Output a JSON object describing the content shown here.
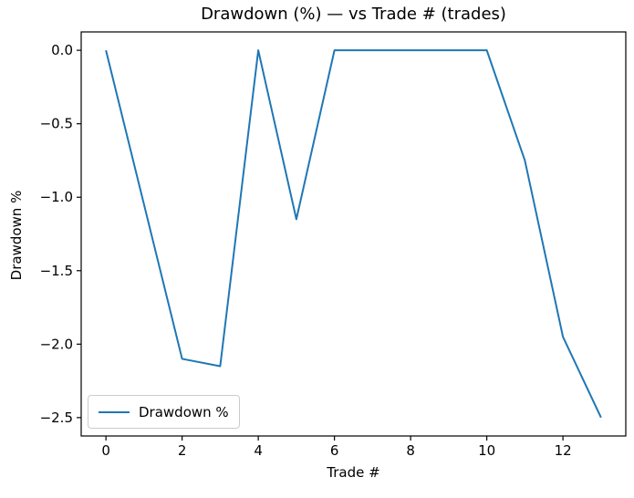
{
  "figure": {
    "background": "#ffffff"
  },
  "chart_data": {
    "type": "line",
    "title": "Drawdown (%) — vs Trade # (trades)",
    "xlabel": "Trade #",
    "ylabel": "Drawdown %",
    "x": [
      0,
      1,
      2,
      3,
      4,
      5,
      6,
      7,
      8,
      9,
      10,
      11,
      12,
      13
    ],
    "series": [
      {
        "name": "Drawdown %",
        "color": "#1f77b4",
        "values": [
          0.0,
          -1.05,
          -2.1,
          -2.15,
          0.0,
          -1.15,
          0.0,
          0.0,
          0.0,
          0.0,
          0.0,
          -0.75,
          -1.95,
          -2.5
        ]
      }
    ],
    "xlim": [
      -0.65,
      13.65
    ],
    "ylim": [
      -2.625,
      0.125
    ],
    "x_ticks": [
      0,
      2,
      4,
      6,
      8,
      10,
      12
    ],
    "x_tick_labels": [
      "0",
      "2",
      "4",
      "6",
      "8",
      "10",
      "12"
    ],
    "y_ticks": [
      0.0,
      -0.5,
      -1.0,
      -1.5,
      -2.0,
      -2.5
    ],
    "y_tick_labels": [
      "0.0",
      "−0.5",
      "−1.0",
      "−1.5",
      "−2.0",
      "−2.5"
    ],
    "grid": false,
    "legend": {
      "position": "lower-left",
      "label": "Drawdown %"
    },
    "line_width": 2,
    "axis_color": "#000000"
  }
}
